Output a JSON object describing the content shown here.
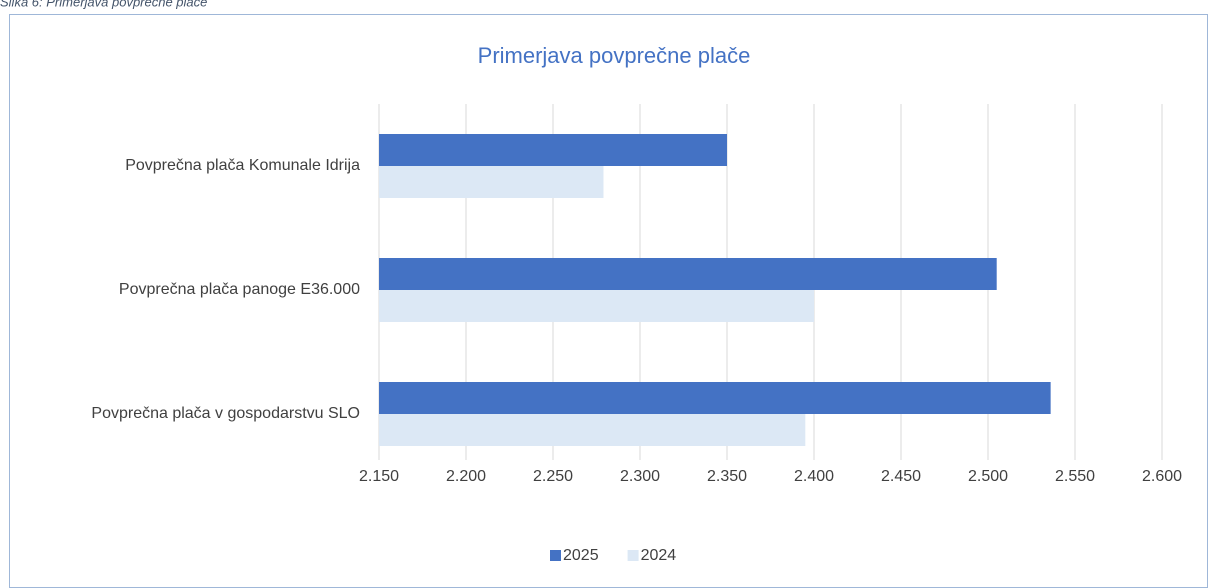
{
  "chart_data": {
    "type": "hbar",
    "caption": "Slika 6: Primerjava povprečne plače",
    "title": "Primerjava povprečne plače",
    "categories": [
      "Povprečna plača Komunale Idrija",
      "Povprečna plača panoge E36.000",
      "Povprečna plača v gospodarstvu SLO"
    ],
    "series": [
      {
        "name": "2025",
        "color": "#4472c4",
        "values": [
          2350,
          2505,
          2536
        ]
      },
      {
        "name": "2024",
        "color": "#dce8f5",
        "values": [
          2279,
          2400,
          2395
        ]
      }
    ],
    "xlim": [
      2150,
      2600
    ],
    "xticks": [
      {
        "value": 2150,
        "label": "2.150"
      },
      {
        "value": 2200,
        "label": "2.200"
      },
      {
        "value": 2250,
        "label": "2.250"
      },
      {
        "value": 2300,
        "label": "2.300"
      },
      {
        "value": 2350,
        "label": "2.350"
      },
      {
        "value": 2400,
        "label": "2.400"
      },
      {
        "value": 2450,
        "label": "2.450"
      },
      {
        "value": 2500,
        "label": "2.500"
      },
      {
        "value": 2550,
        "label": "2.550"
      },
      {
        "value": 2600,
        "label": "2.600"
      }
    ],
    "grid": true,
    "legend": "bottom"
  }
}
